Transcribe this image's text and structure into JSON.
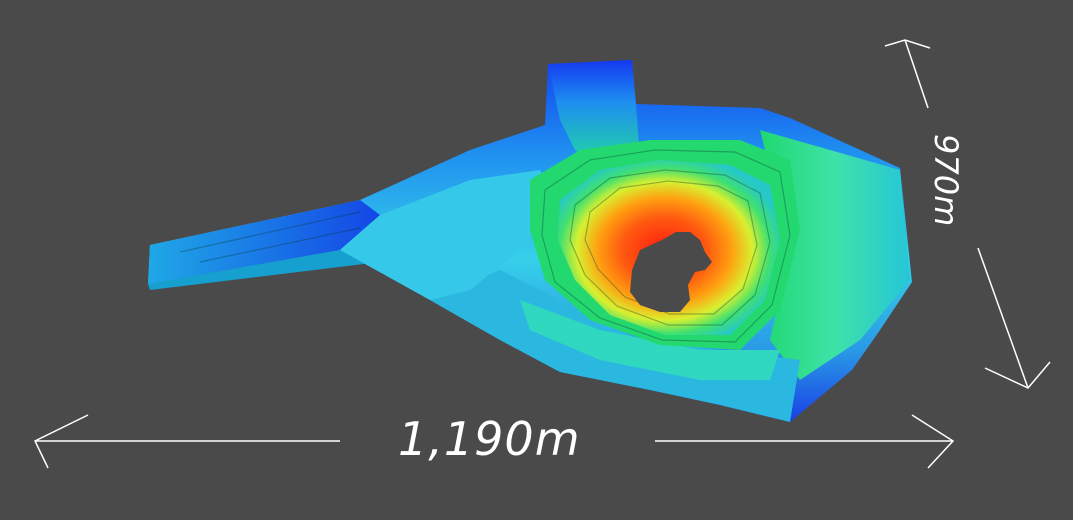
{
  "dimensions": {
    "width_label": "1,190m",
    "depth_label": "970m"
  },
  "colors": {
    "background": "#4a4a4a",
    "arrow": "#ffffff",
    "low_elevation": "#1a3cff",
    "mid_low_elevation": "#36d8ff",
    "mid_elevation": "#2fe08a",
    "mid_high_elevation": "#d8f030",
    "high_elevation": "#ff9a10",
    "highest_elevation": "#ff1a10"
  }
}
